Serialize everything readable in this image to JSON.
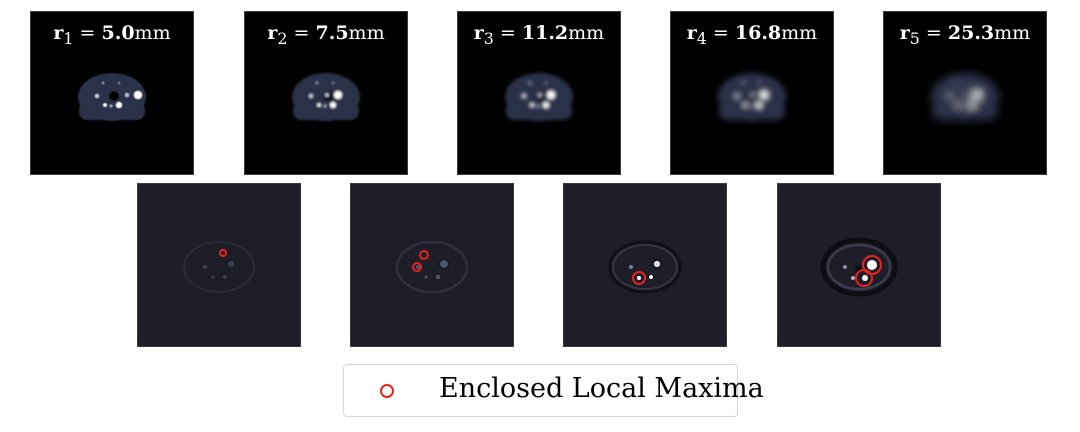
{
  "colors": {
    "top_background": "#000000",
    "bottom_background": "#1d1e28",
    "marker": "#e8231d",
    "label_text": "#ffffff"
  },
  "top_panels": [
    {
      "var": "r",
      "sub": "1",
      "value": "5.0",
      "unit": "mm",
      "blur": 0.6
    },
    {
      "var": "r",
      "sub": "2",
      "value": "7.5",
      "unit": "mm",
      "blur": 1.1
    },
    {
      "var": "r",
      "sub": "3",
      "value": "11.2",
      "unit": "mm",
      "blur": 1.8
    },
    {
      "var": "r",
      "sub": "4",
      "value": "16.8",
      "unit": "mm",
      "blur": 2.8
    },
    {
      "var": "r",
      "sub": "5",
      "value": "25.3",
      "unit": "mm",
      "blur": 4.2
    }
  ],
  "bottom_panels": [
    {
      "circles": 1
    },
    {
      "circles": 2
    },
    {
      "circles": 1
    },
    {
      "circles": 2
    }
  ],
  "legend": {
    "label": "Enclosed Local Maxima"
  }
}
